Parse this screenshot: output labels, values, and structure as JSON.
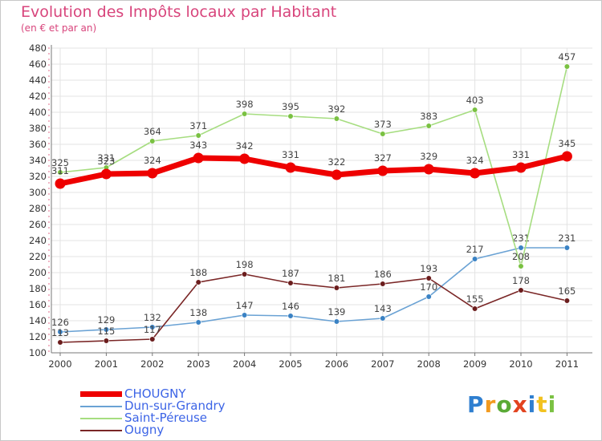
{
  "title": "Evolution des Impôts locaux par Habitant",
  "subtitle": "(en € et par an)",
  "logo": "Proxiti",
  "colors": {
    "title": "#d8457c",
    "grid": "#e3e3e3",
    "axis": "#777777",
    "tick_text": "#333333",
    "value_text": "#444444",
    "legend_text": "#3c64e6"
  },
  "chart_data": {
    "type": "line",
    "title": "Evolution des Impôts locaux par Habitant",
    "subtitle": "(en € et par an)",
    "xlabel": "",
    "ylabel": "",
    "ylim": [
      100,
      480
    ],
    "y_ticks": [
      100,
      120,
      140,
      160,
      180,
      200,
      220,
      240,
      260,
      280,
      300,
      320,
      340,
      360,
      380,
      400,
      420,
      440,
      460,
      480
    ],
    "grid": true,
    "legend_position": "bottom-left",
    "categories": [
      "2000",
      "2001",
      "2002",
      "2003",
      "2004",
      "2005",
      "2006",
      "2007",
      "2008",
      "2009",
      "2010",
      "2011"
    ],
    "series": [
      {
        "name": "CHOUGNY",
        "color": "#ee0000",
        "marker": "#ee0000",
        "width": "thick",
        "values": [
          311,
          323,
          324,
          343,
          342,
          331,
          322,
          327,
          329,
          324,
          331,
          345
        ]
      },
      {
        "name": "Dun-sur-Grandry",
        "color": "#6aa2d4",
        "marker": "#3a82c4",
        "width": "thin",
        "values": [
          126,
          129,
          132,
          138,
          147,
          146,
          139,
          143,
          170,
          217,
          231,
          231
        ]
      },
      {
        "name": "Saint-Péreuse",
        "color": "#a6dd80",
        "marker": "#7ac142",
        "width": "thin",
        "values": [
          325,
          331,
          364,
          371,
          398,
          395,
          392,
          373,
          383,
          403,
          208,
          457
        ]
      },
      {
        "name": "Ougny",
        "color": "#7a2626",
        "marker": "#6b1d1d",
        "width": "thin",
        "values": [
          113,
          115,
          117,
          188,
          198,
          187,
          181,
          186,
          193,
          155,
          178,
          165
        ]
      }
    ]
  }
}
